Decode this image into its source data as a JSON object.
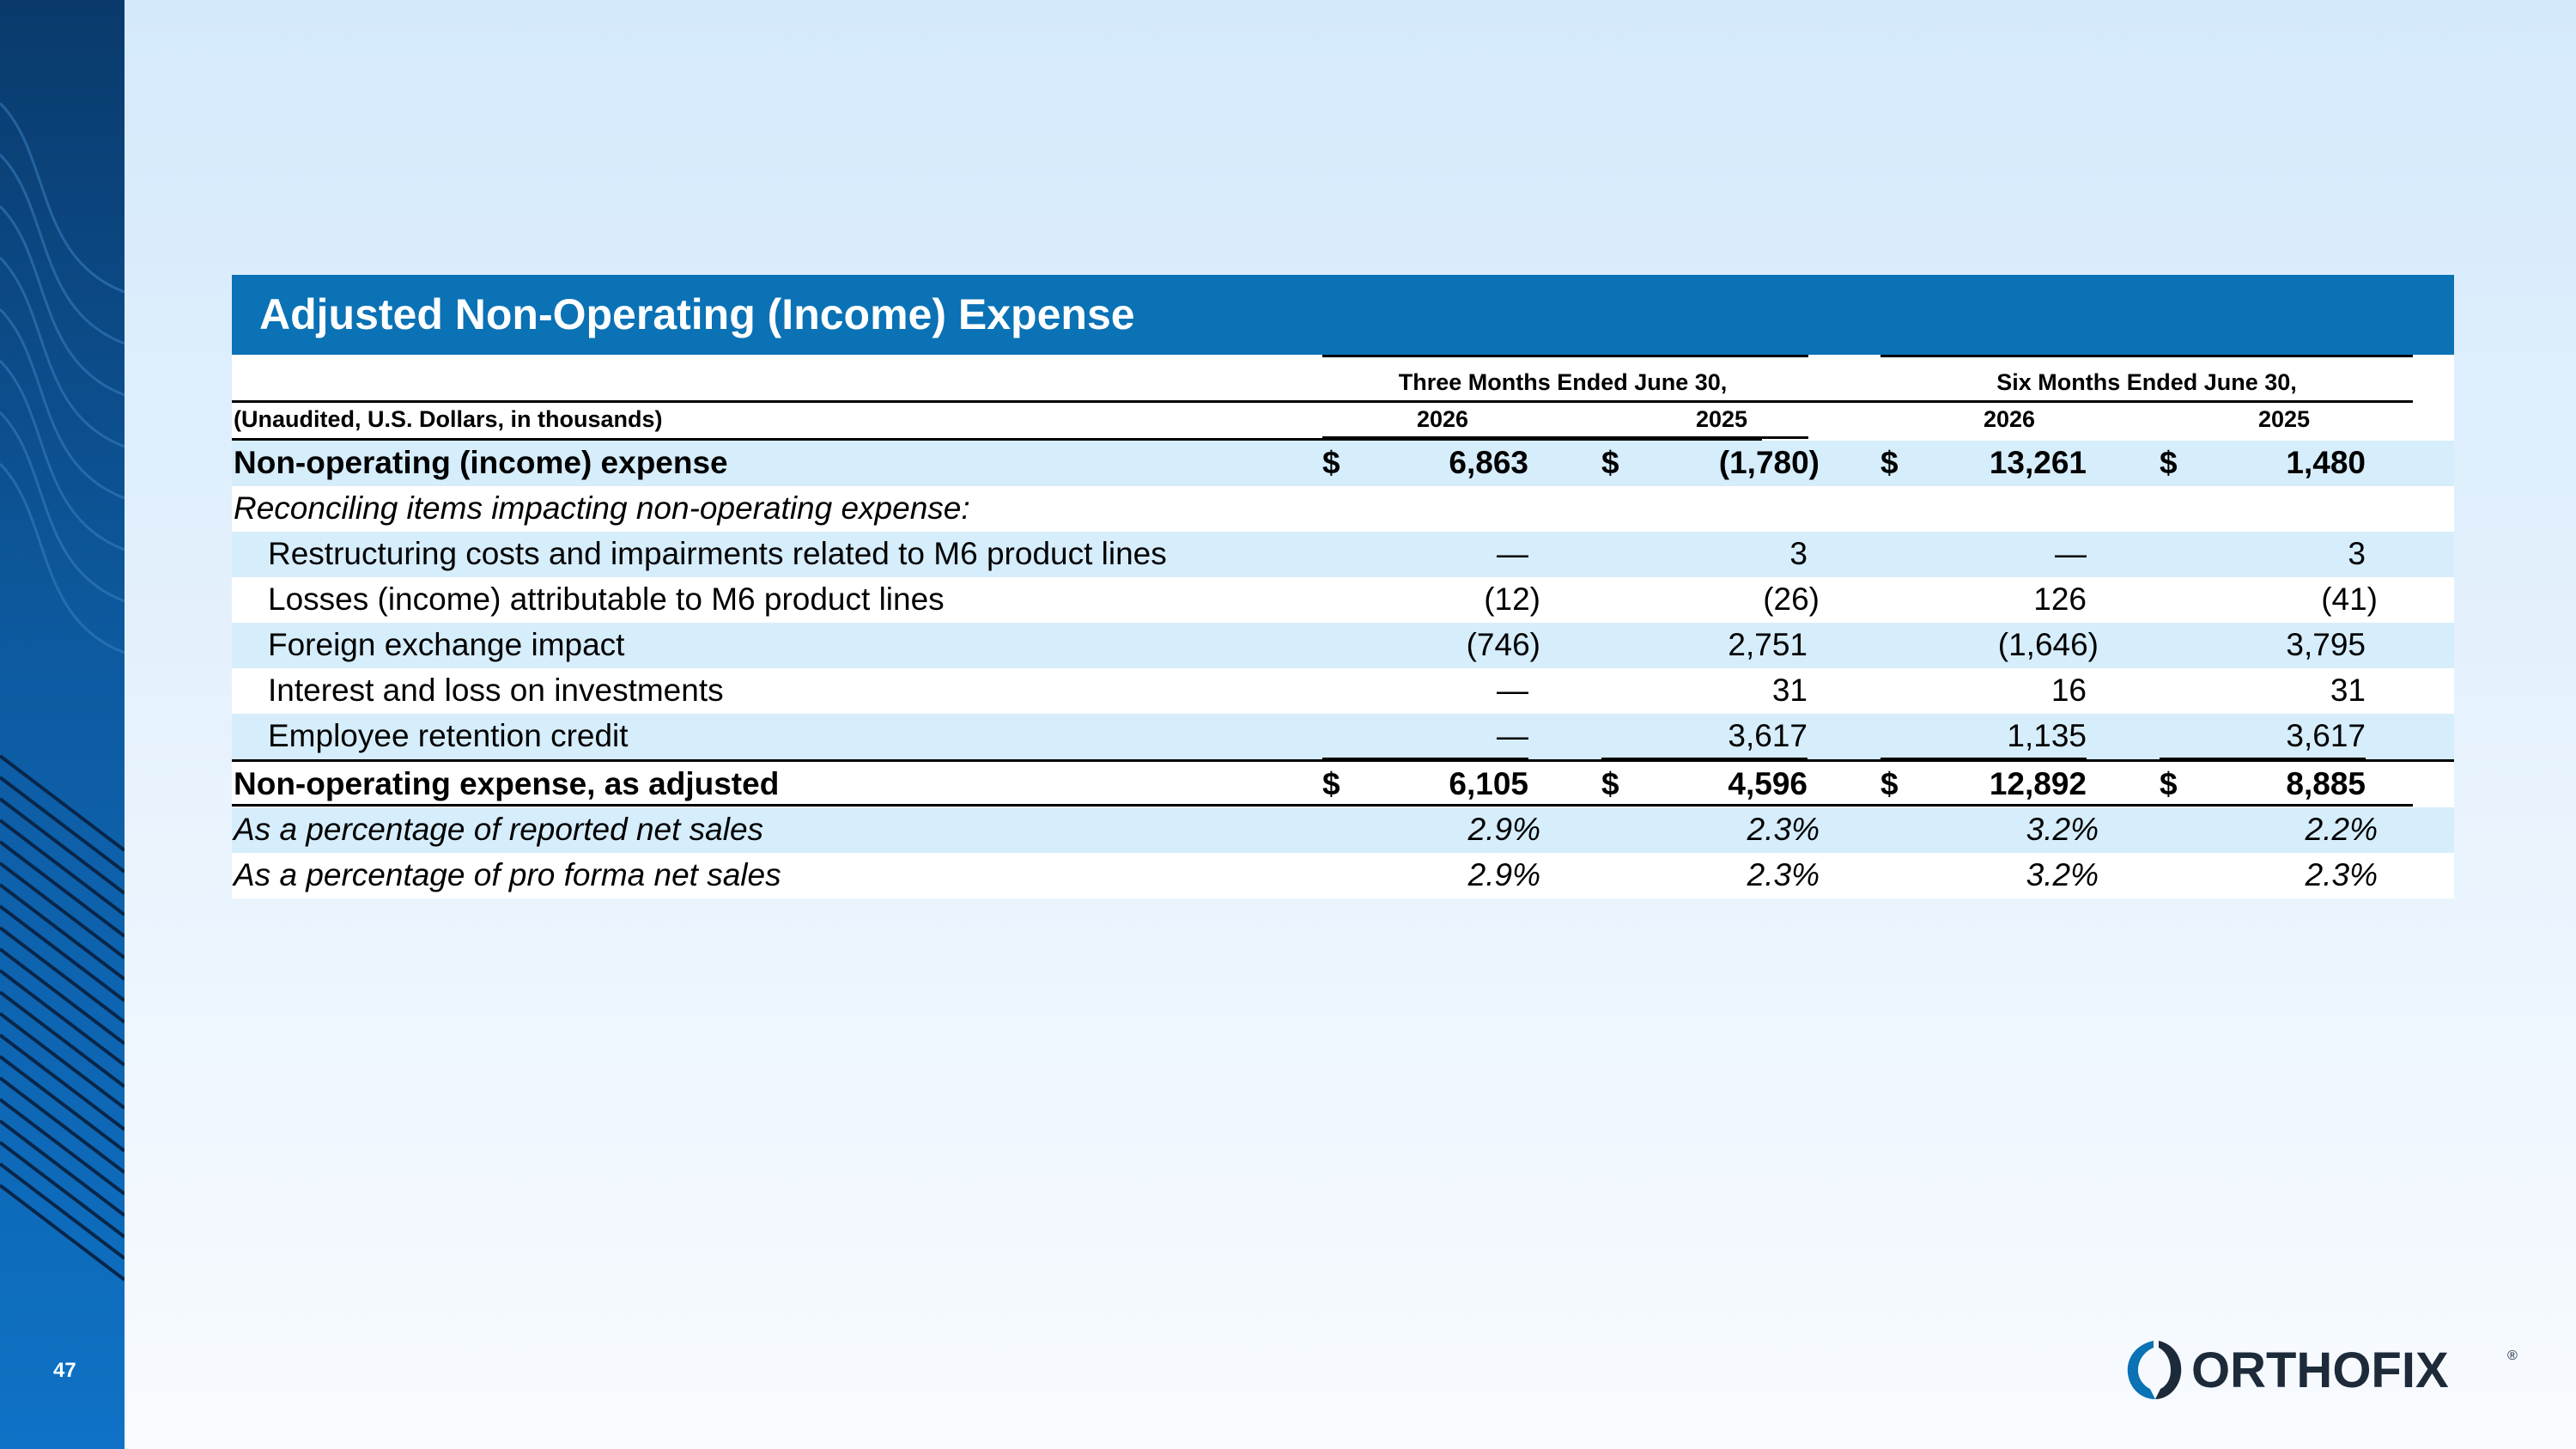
{
  "page": {
    "number": "47"
  },
  "title": "Adjusted Non-Operating (Income) Expense",
  "header": {
    "period_three": "Three Months Ended June 30,",
    "period_six": "Six Months Ended June 30,",
    "basis": "(Unaudited, U.S. Dollars, in thousands)",
    "years": [
      "2026",
      "2025",
      "2026",
      "2025"
    ]
  },
  "rows": [
    {
      "label": "Non-operating (income) expense",
      "style": "bold",
      "indent": false,
      "bg": "blue",
      "dollar": true,
      "values": [
        "6,863",
        "(1,780)",
        "13,261",
        "1,480"
      ]
    },
    {
      "label": "Reconciling items impacting non-operating expense:",
      "style": "italic",
      "indent": false,
      "bg": "white",
      "dollar": false,
      "values": [
        "",
        "",
        "",
        ""
      ]
    },
    {
      "label": "Restructuring costs and impairments related to M6 product lines",
      "style": "normal",
      "indent": true,
      "bg": "blue",
      "dollar": false,
      "values": [
        "—",
        "3",
        "—",
        "3"
      ]
    },
    {
      "label": "Losses (income) attributable to M6 product lines",
      "style": "normal",
      "indent": true,
      "bg": "white",
      "dollar": false,
      "values": [
        "(12)",
        "(26)",
        "126",
        "(41)"
      ]
    },
    {
      "label": "Foreign exchange impact",
      "style": "normal",
      "indent": true,
      "bg": "blue",
      "dollar": false,
      "values": [
        "(746)",
        "2,751",
        "(1,646)",
        "3,795"
      ]
    },
    {
      "label": "Interest and loss on investments",
      "style": "normal",
      "indent": true,
      "bg": "white",
      "dollar": false,
      "values": [
        "—",
        "31",
        "16",
        "31"
      ]
    },
    {
      "label": "Employee retention credit",
      "style": "normal",
      "indent": true,
      "bg": "blue",
      "dollar": false,
      "values": [
        "—",
        "3,617",
        "1,135",
        "3,617"
      ]
    },
    {
      "label": "Non-operating expense, as adjusted",
      "style": "bold",
      "indent": false,
      "bg": "white",
      "dollar": true,
      "values": [
        "6,105",
        "4,596",
        "12,892",
        "8,885"
      ]
    },
    {
      "label": "As a percentage of reported net sales",
      "style": "italic",
      "indent": false,
      "bg": "blue",
      "dollar": false,
      "values": [
        "2.9%",
        "2.3%",
        "3.2%",
        "2.2%"
      ]
    },
    {
      "label": "As a percentage of pro forma net sales",
      "style": "italic",
      "indent": false,
      "bg": "white",
      "dollar": false,
      "values": [
        "2.9%",
        "2.3%",
        "3.2%",
        "2.3%"
      ]
    }
  ],
  "dollar_sign": "$",
  "logo": {
    "text": "ORTHOFIX",
    "mark": "®"
  },
  "colors": {
    "title_bar": "#0a72b5",
    "row_blue": "#d6edfb",
    "sidebar": "#0d5aa0"
  }
}
